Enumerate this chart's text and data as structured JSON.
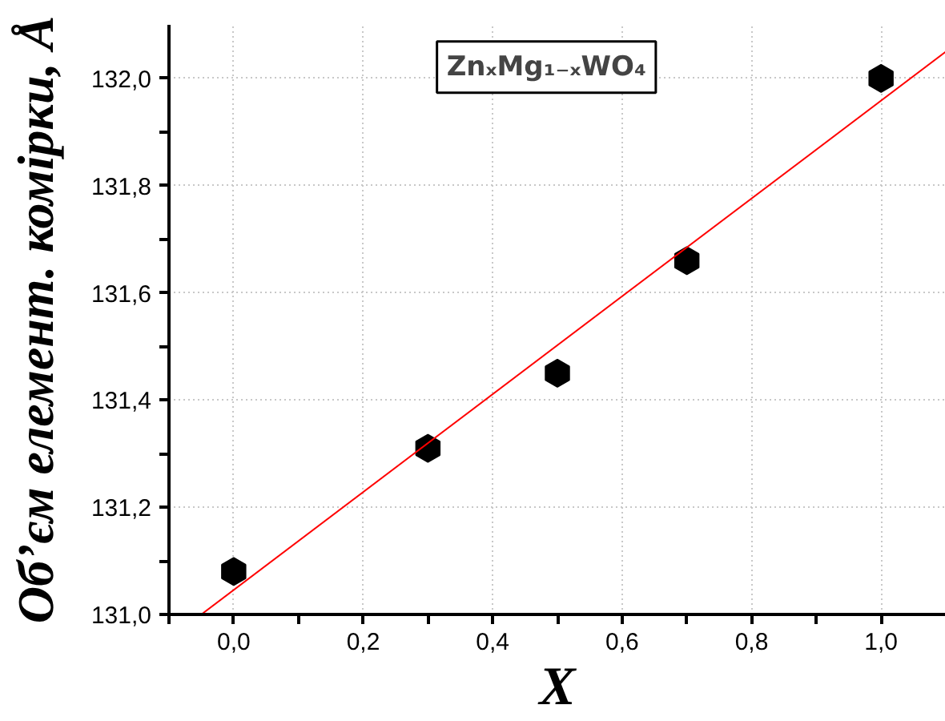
{
  "chart_data": {
    "type": "scatter",
    "xlabel": "X",
    "ylabel": "Об’єм елемент. комірки, Å",
    "annotations": [
      "ZnₓMg₁₋ₓWO₄"
    ],
    "series": [
      {
        "color": "#000000",
        "x": [
          0.0,
          0.3,
          0.5,
          0.7,
          1.0
        ],
        "values": [
          131.08,
          131.31,
          131.45,
          131.66,
          132.0
        ]
      },
      {
        "type": "line",
        "color": "#ff0000",
        "line_style": "solid",
        "x": [
          -0.05,
          1.1
        ],
        "values": [
          131.0,
          132.05
        ]
      }
    ],
    "xlim": [
      -0.1,
      1.1
    ],
    "ylim": [
      131.0,
      132.1
    ],
    "xticks": [
      {
        "value": -0.1,
        "label": null
      },
      {
        "value": 0.0,
        "label": "0,0"
      },
      {
        "value": 0.1,
        "label": null
      },
      {
        "value": 0.2,
        "label": "0,2"
      },
      {
        "value": 0.3,
        "label": null
      },
      {
        "value": 0.4,
        "label": "0,4"
      },
      {
        "value": 0.5,
        "label": null
      },
      {
        "value": 0.6,
        "label": "0,6"
      },
      {
        "value": 0.7,
        "label": null
      },
      {
        "value": 0.8,
        "label": "0,8"
      },
      {
        "value": 0.9,
        "label": null
      },
      {
        "value": 1.0,
        "label": "1,0"
      }
    ],
    "yticks": [
      {
        "value": 131.0,
        "label": "131,0"
      },
      {
        "value": 131.1,
        "label": null
      },
      {
        "value": 131.2,
        "label": "131,2"
      },
      {
        "value": 131.3,
        "label": null
      },
      {
        "value": 131.4,
        "label": "131,4"
      },
      {
        "value": 131.5,
        "label": null
      },
      {
        "value": 131.6,
        "label": "131,6"
      },
      {
        "value": 131.7,
        "label": null
      },
      {
        "value": 131.8,
        "label": "131,8"
      },
      {
        "value": 131.9,
        "label": null
      },
      {
        "value": 132.0,
        "label": "132,0"
      }
    ],
    "grid": true
  }
}
